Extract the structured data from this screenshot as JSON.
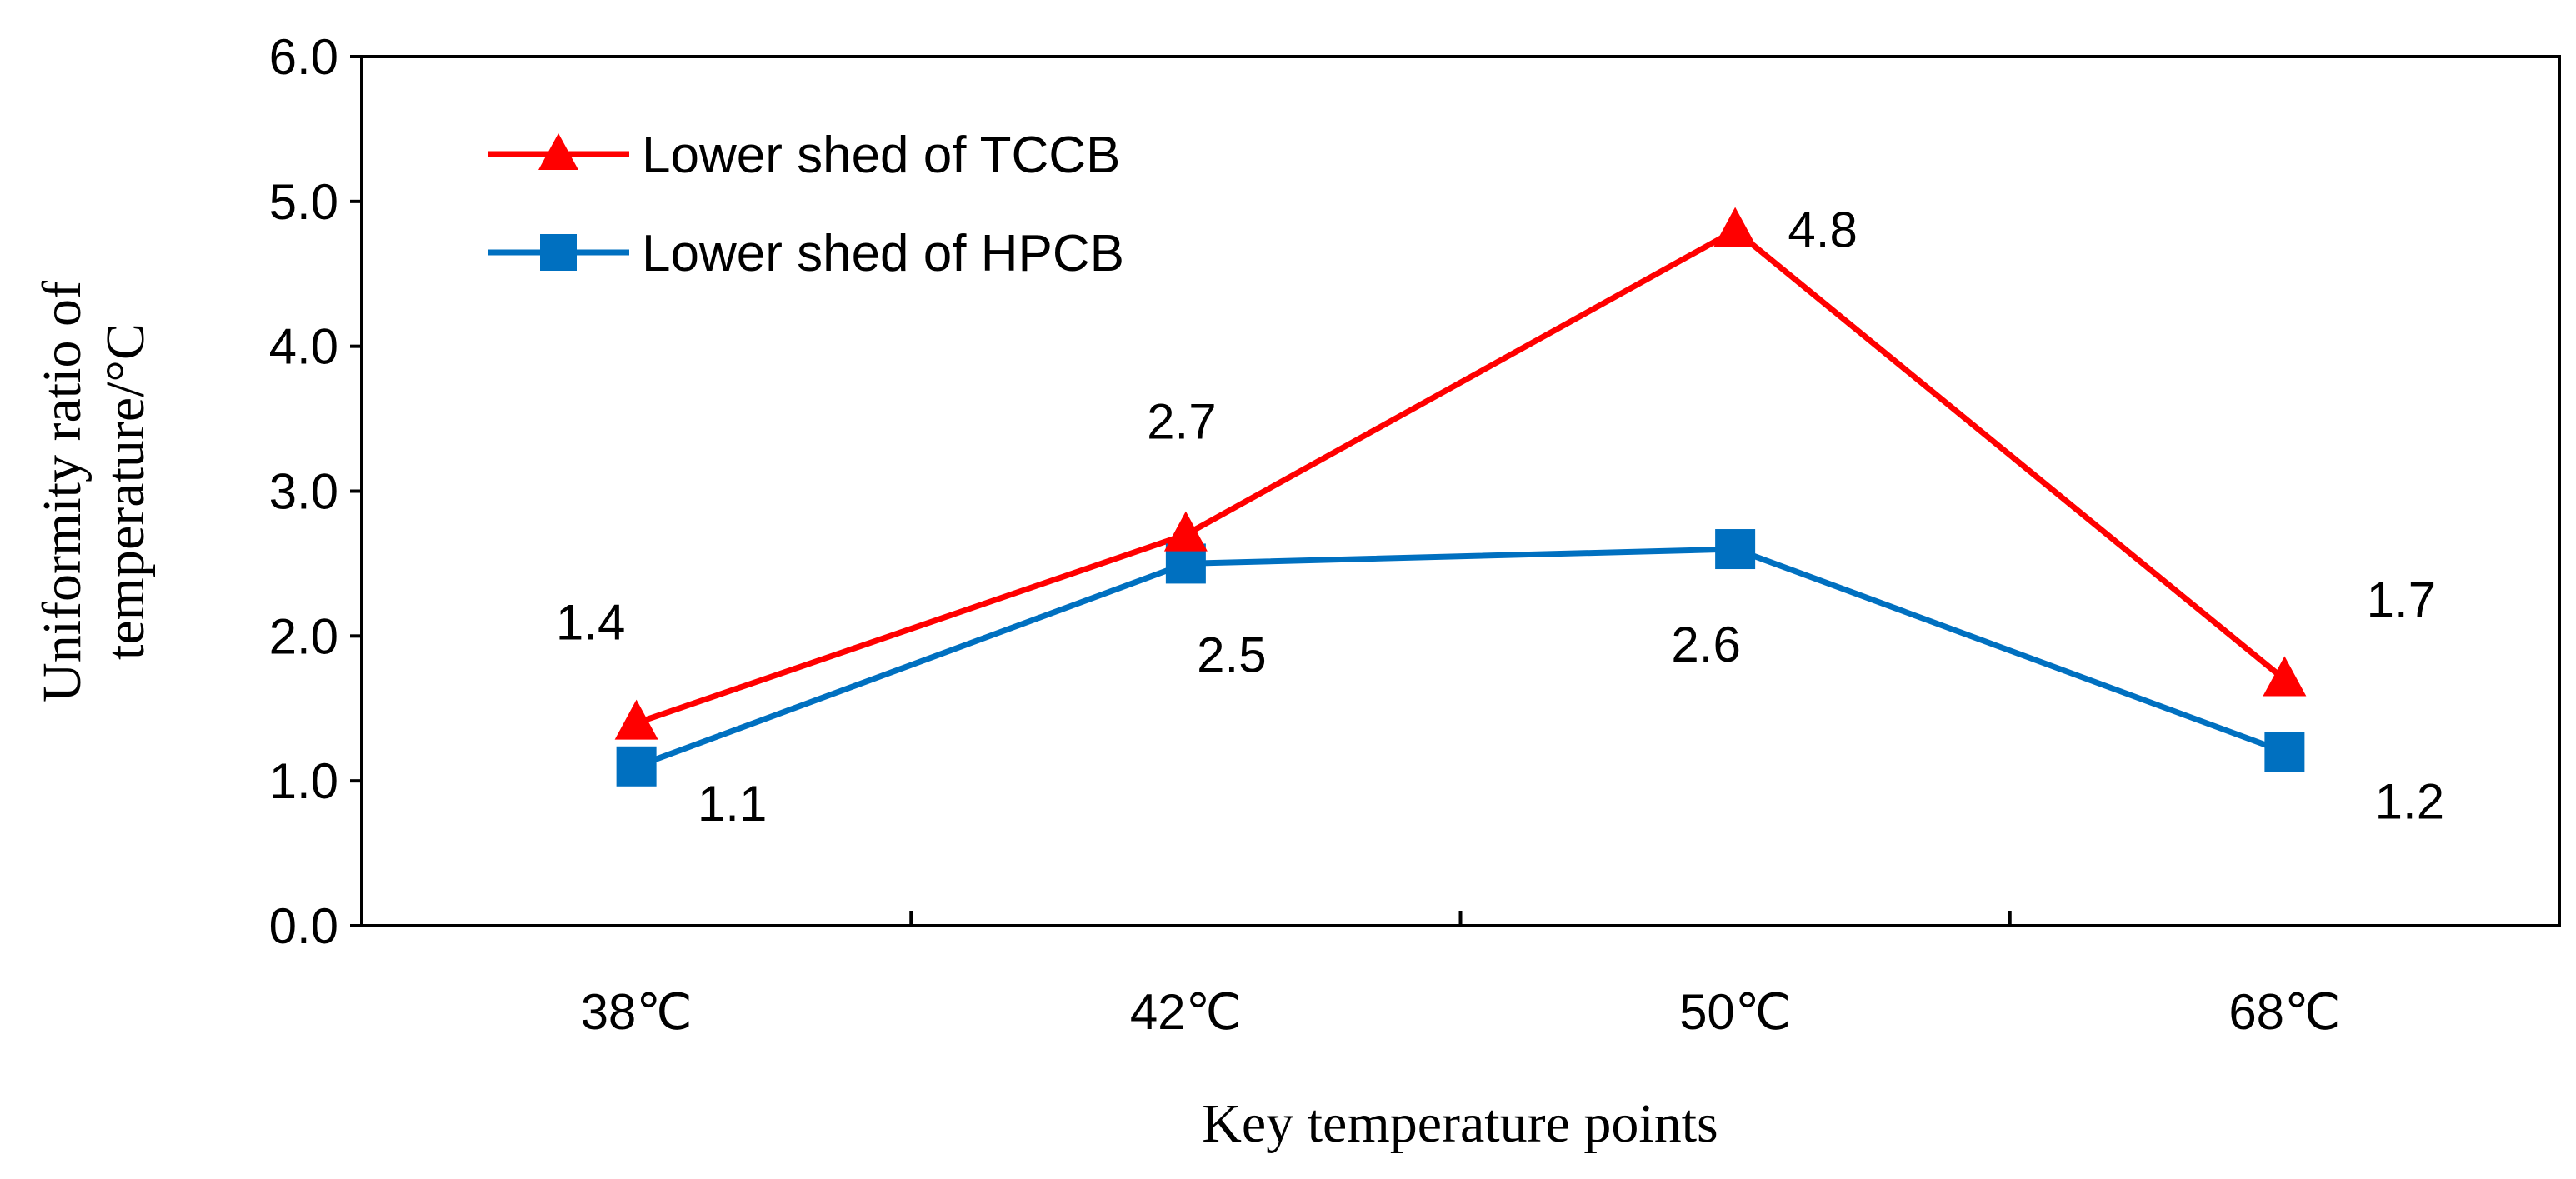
{
  "chart_data": {
    "type": "line",
    "title": "",
    "xlabel": "Key temperature points",
    "ylabel_lines": [
      "Uniformity ratio of",
      "temperature/°C"
    ],
    "categories": [
      "38℃",
      "42℃",
      "50℃",
      "68℃"
    ],
    "ylim": [
      0,
      6
    ],
    "yticks": [
      "0.0",
      "1.0",
      "2.0",
      "3.0",
      "4.0",
      "5.0",
      "6.0"
    ],
    "grid": false,
    "legend_position": "top-left",
    "series": [
      {
        "name": "Lower shed of TCCB",
        "color": "#ff0000",
        "marker": "triangle",
        "values": [
          1.4,
          2.7,
          4.8,
          1.7
        ],
        "labels": [
          "1.4",
          "2.7",
          "4.8",
          "1.7"
        ]
      },
      {
        "name": "Lower shed of HPCB",
        "color": "#0070c0",
        "marker": "square",
        "values": [
          1.1,
          2.5,
          2.6,
          1.2
        ],
        "labels": [
          "1.1",
          "2.5",
          "2.6",
          "1.2"
        ]
      }
    ]
  }
}
